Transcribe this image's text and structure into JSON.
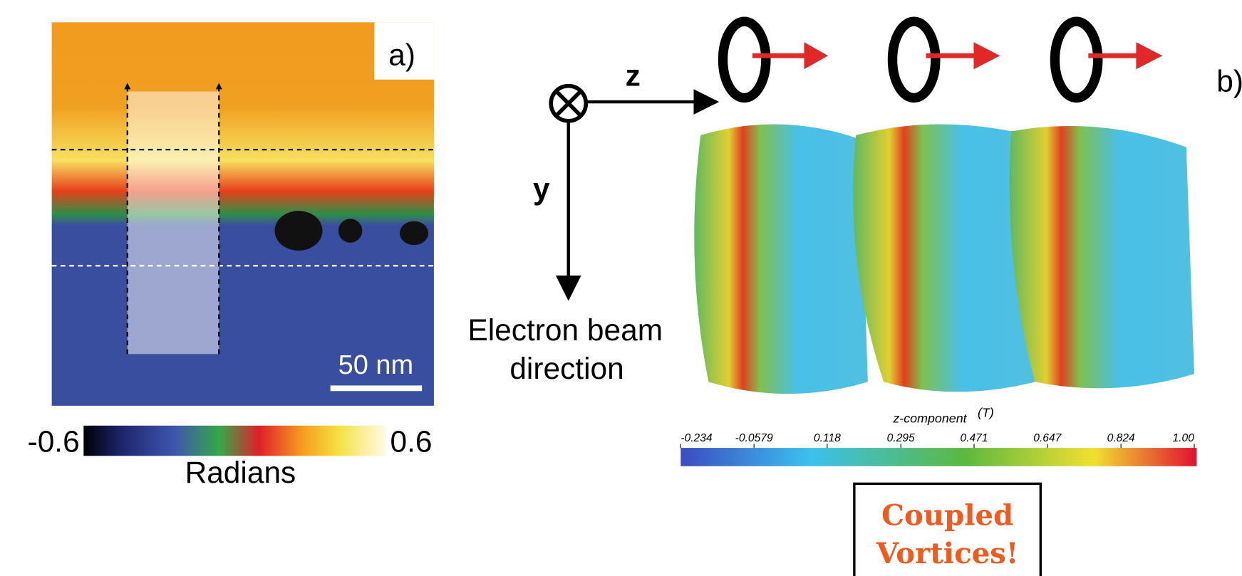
{
  "panel_a": {
    "label": "a)",
    "scale_bar_label": "50 nm",
    "colorbar": {
      "ticks": [
        -0.6,
        0.6
      ],
      "label": "Radians"
    }
  },
  "panel_b": {
    "label": "b)",
    "axis_z": "z",
    "axis_y": "y",
    "beam_label": [
      "Electron beam",
      "direction"
    ],
    "colorbar": {
      "title": "z-component",
      "unit": "(T)",
      "lim": [
        -0.234,
        1
      ],
      "ticks": [
        -0.234,
        -0.0579,
        0.118,
        0.295,
        0.471,
        0.647,
        0.824,
        {
          "value": 1,
          "label": "1.00"
        }
      ]
    }
  },
  "callout": [
    "Coupled",
    "Vortices!"
  ]
}
